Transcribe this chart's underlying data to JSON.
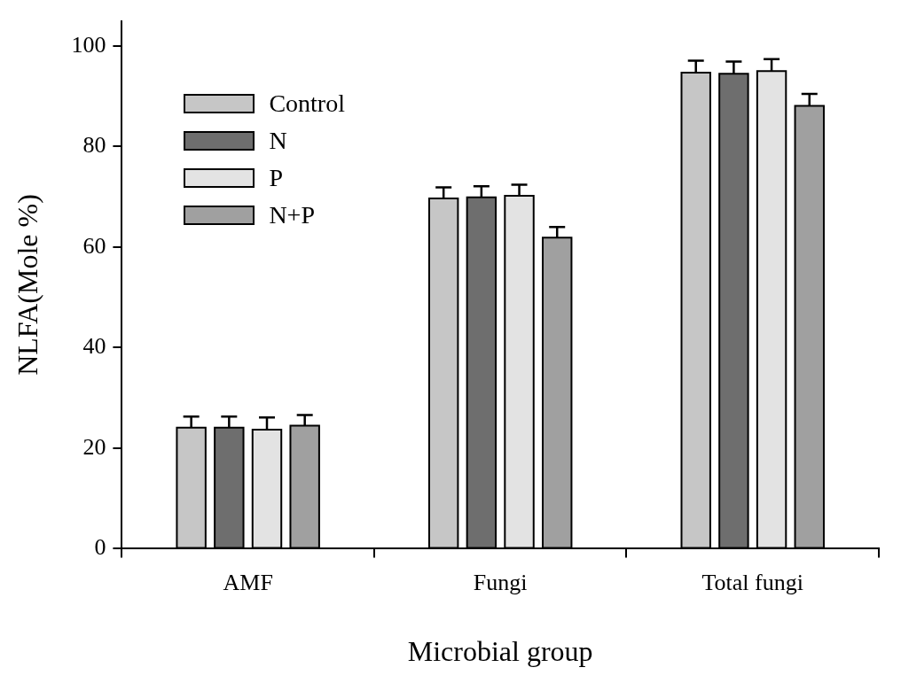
{
  "chart_data": {
    "type": "bar",
    "xlabel": "Microbial group",
    "ylabel": "NLFA(Mole %)",
    "categories": [
      "AMF",
      "Fungi",
      "Total fungi"
    ],
    "series": [
      {
        "name": "Control",
        "color": "#c6c6c6",
        "values": [
          24.1,
          69.7,
          94.7
        ],
        "errors": [
          [
            24.1,
            26.3
          ],
          [
            69.7,
            71.9
          ],
          [
            94.7,
            97.1
          ]
        ]
      },
      {
        "name": "N",
        "color": "#6e6e6e",
        "values": [
          24.1,
          69.9,
          94.5
        ],
        "errors": [
          [
            24.1,
            26.3
          ],
          [
            69.9,
            72.1
          ],
          [
            94.5,
            96.9
          ]
        ]
      },
      {
        "name": "P",
        "color": "#e3e3e3",
        "values": [
          23.7,
          70.2,
          95.0
        ],
        "errors": [
          [
            23.7,
            26.1
          ],
          [
            70.2,
            72.4
          ],
          [
            95.0,
            97.4
          ]
        ]
      },
      {
        "name": "N+P",
        "color": "#a0a0a0",
        "values": [
          24.5,
          61.9,
          88.1
        ],
        "errors": [
          [
            24.5,
            26.6
          ],
          [
            61.9,
            64.0
          ],
          [
            88.1,
            90.5
          ]
        ]
      }
    ],
    "ylim": [
      0,
      105
    ],
    "yticks": [
      0,
      20,
      40,
      60,
      80,
      100
    ],
    "grid": false,
    "legend": "top left"
  }
}
